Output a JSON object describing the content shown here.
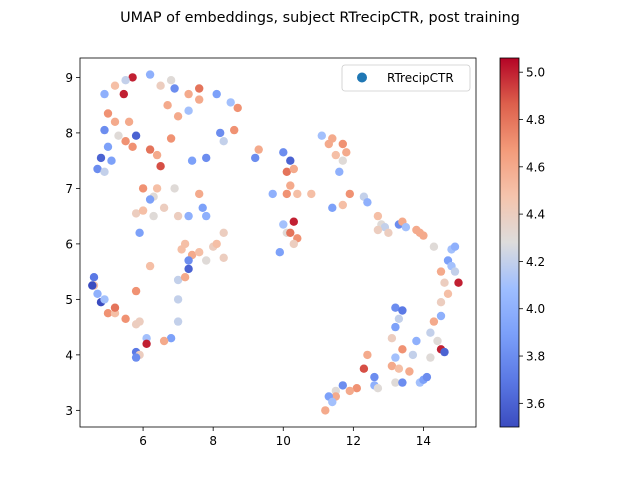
{
  "chart_data": {
    "type": "scatter",
    "title": "UMAP of embeddings, subject RTrecipCTR, post training",
    "xlabel": "",
    "ylabel": "",
    "xlim": [
      4.2,
      15.5
    ],
    "ylim": [
      2.7,
      9.35
    ],
    "xticks": [
      "6",
      "8",
      "10",
      "12",
      "14"
    ],
    "xtick_values": [
      6,
      8,
      10,
      12,
      14
    ],
    "yticks": [
      "3",
      "4",
      "5",
      "6",
      "7",
      "8",
      "9"
    ],
    "ytick_values": [
      3,
      4,
      5,
      6,
      7,
      8,
      9
    ],
    "legend": {
      "label": "RTrecipCTR",
      "placement": "top-right",
      "marker_color": "#1f77b4"
    },
    "colorbar": {
      "cmap": "coolwarm",
      "min": 3.5,
      "max": 5.06,
      "ticks": [
        "3.6",
        "3.8",
        "4.0",
        "4.2",
        "4.4",
        "4.6",
        "4.8",
        "5.0"
      ],
      "tick_values": [
        3.6,
        3.8,
        4.0,
        4.2,
        4.4,
        4.6,
        4.8,
        5.0
      ]
    },
    "grid": false,
    "points": [
      [
        5.7,
        9.0,
        5.0
      ],
      [
        5.5,
        8.95,
        4.2
      ],
      [
        6.2,
        9.05,
        4.0
      ],
      [
        6.5,
        8.85,
        4.4
      ],
      [
        6.8,
        8.95,
        4.3
      ],
      [
        6.9,
        8.8,
        3.8
      ],
      [
        7.3,
        8.7,
        4.6
      ],
      [
        7.6,
        8.8,
        4.8
      ],
      [
        8.1,
        8.7,
        3.9
      ],
      [
        8.5,
        8.55,
        4.1
      ],
      [
        8.7,
        8.45,
        4.7
      ],
      [
        5.2,
        8.85,
        4.5
      ],
      [
        5.45,
        8.7,
        5.0
      ],
      [
        4.9,
        8.7,
        4.0
      ],
      [
        5.0,
        8.35,
        4.7
      ],
      [
        5.2,
        8.2,
        4.6
      ],
      [
        4.9,
        8.05,
        3.8
      ],
      [
        5.3,
        7.95,
        4.3
      ],
      [
        5.5,
        7.85,
        4.7
      ],
      [
        5.0,
        7.75,
        3.9
      ],
      [
        4.8,
        7.55,
        3.6
      ],
      [
        5.1,
        7.5,
        3.9
      ],
      [
        4.7,
        7.35,
        3.8
      ],
      [
        4.9,
        7.3,
        4.2
      ],
      [
        5.8,
        7.95,
        3.6
      ],
      [
        6.2,
        7.7,
        4.8
      ],
      [
        6.4,
        7.6,
        4.6
      ],
      [
        6.5,
        7.4,
        4.9
      ],
      [
        6.8,
        7.9,
        4.7
      ],
      [
        7.0,
        8.3,
        4.6
      ],
      [
        7.3,
        8.4,
        4.1
      ],
      [
        7.6,
        8.6,
        4.6
      ],
      [
        7.8,
        7.55,
        3.8
      ],
      [
        8.2,
        8.0,
        3.8
      ],
      [
        8.6,
        8.05,
        4.7
      ],
      [
        8.3,
        7.85,
        4.2
      ],
      [
        6.0,
        7.0,
        4.7
      ],
      [
        6.3,
        6.85,
        4.3
      ],
      [
        6.4,
        7.0,
        4.5
      ],
      [
        6.6,
        6.65,
        4.4
      ],
      [
        7.0,
        6.5,
        4.4
      ],
      [
        7.6,
        6.9,
        4.6
      ],
      [
        7.7,
        6.65,
        3.9
      ],
      [
        7.8,
        6.5,
        4.0
      ],
      [
        7.3,
        6.5,
        4.0
      ],
      [
        5.8,
        6.55,
        4.4
      ],
      [
        6.0,
        6.6,
        4.5
      ],
      [
        6.2,
        6.8,
        3.9
      ],
      [
        6.3,
        6.5,
        4.3
      ],
      [
        5.9,
        6.2,
        3.9
      ],
      [
        7.1,
        5.9,
        4.5
      ],
      [
        7.2,
        6.0,
        4.5
      ],
      [
        7.4,
        5.8,
        4.6
      ],
      [
        7.3,
        5.7,
        3.8
      ],
      [
        7.6,
        5.85,
        4.5
      ],
      [
        7.8,
        5.7,
        4.3
      ],
      [
        8.0,
        5.95,
        4.4
      ],
      [
        8.3,
        5.75,
        4.4
      ],
      [
        8.3,
        6.2,
        4.4
      ],
      [
        8.1,
        6.0,
        4.5
      ],
      [
        7.0,
        5.35,
        4.2
      ],
      [
        7.2,
        5.4,
        4.6
      ],
      [
        7.3,
        5.55,
        3.6
      ],
      [
        6.2,
        5.6,
        4.5
      ],
      [
        5.8,
        5.15,
        4.7
      ],
      [
        7.0,
        5.0,
        4.2
      ],
      [
        7.0,
        4.6,
        4.2
      ],
      [
        6.8,
        4.3,
        3.9
      ],
      [
        6.6,
        4.25,
        4.6
      ],
      [
        6.1,
        4.3,
        4.1
      ],
      [
        6.1,
        4.2,
        5.0
      ],
      [
        5.8,
        4.05,
        3.7
      ],
      [
        5.9,
        4.0,
        4.4
      ],
      [
        5.8,
        3.95,
        3.8
      ],
      [
        4.6,
        5.4,
        3.7
      ],
      [
        4.6,
        5.25,
        4.5
      ],
      [
        4.7,
        5.1,
        4.0
      ],
      [
        4.8,
        4.95,
        3.5
      ],
      [
        4.9,
        5.0,
        4.1
      ],
      [
        5.0,
        4.75,
        4.7
      ],
      [
        5.2,
        4.75,
        4.5
      ],
      [
        5.2,
        4.85,
        4.8
      ],
      [
        5.5,
        4.65,
        4.7
      ],
      [
        5.8,
        4.55,
        4.4
      ],
      [
        5.9,
        4.6,
        4.4
      ],
      [
        4.55,
        5.25,
        3.5
      ],
      [
        5.6,
        8.2,
        4.6
      ],
      [
        5.7,
        7.75,
        4.7
      ],
      [
        6.7,
        8.5,
        4.6
      ],
      [
        6.9,
        7.0,
        4.3
      ],
      [
        7.4,
        7.5,
        3.9
      ],
      [
        9.3,
        7.7,
        4.6
      ],
      [
        9.2,
        7.55,
        3.8
      ],
      [
        9.7,
        6.9,
        4.0
      ],
      [
        10.0,
        7.65,
        3.8
      ],
      [
        10.2,
        7.5,
        3.6
      ],
      [
        10.1,
        7.3,
        4.8
      ],
      [
        10.2,
        7.05,
        4.6
      ],
      [
        10.1,
        6.9,
        4.7
      ],
      [
        10.3,
        7.35,
        4.6
      ],
      [
        10.4,
        6.9,
        4.5
      ],
      [
        10.8,
        6.9,
        4.5
      ],
      [
        11.1,
        7.95,
        4.1
      ],
      [
        11.3,
        7.8,
        4.6
      ],
      [
        11.4,
        7.9,
        4.6
      ],
      [
        11.5,
        7.6,
        4.5
      ],
      [
        11.7,
        7.8,
        4.7
      ],
      [
        11.7,
        7.5,
        4.3
      ],
      [
        11.8,
        7.65,
        4.6
      ],
      [
        11.6,
        7.3,
        4.0
      ],
      [
        11.9,
        6.9,
        4.7
      ],
      [
        11.4,
        6.65,
        3.9
      ],
      [
        11.7,
        6.7,
        4.5
      ],
      [
        10.0,
        6.35,
        4.1
      ],
      [
        10.1,
        6.2,
        4.3
      ],
      [
        10.2,
        6.2,
        4.8
      ],
      [
        10.3,
        6.4,
        5.0
      ],
      [
        10.4,
        6.1,
        4.7
      ],
      [
        10.3,
        6.0,
        4.4
      ],
      [
        9.9,
        5.85,
        3.9
      ],
      [
        12.3,
        6.85,
        4.2
      ],
      [
        12.4,
        6.75,
        4.0
      ],
      [
        12.7,
        6.5,
        4.5
      ],
      [
        12.8,
        6.35,
        4.3
      ],
      [
        12.9,
        6.3,
        4.2
      ],
      [
        12.7,
        6.25,
        4.4
      ],
      [
        13.0,
        6.2,
        4.4
      ],
      [
        13.3,
        6.35,
        3.8
      ],
      [
        13.4,
        6.4,
        4.6
      ],
      [
        13.5,
        6.3,
        4.1
      ],
      [
        13.8,
        6.25,
        4.6
      ],
      [
        13.9,
        6.2,
        4.6
      ],
      [
        14.0,
        6.15,
        4.6
      ],
      [
        14.3,
        5.95,
        4.3
      ],
      [
        14.5,
        5.5,
        4.6
      ],
      [
        14.8,
        5.9,
        4.1
      ],
      [
        14.9,
        5.95,
        4.0
      ],
      [
        14.7,
        5.7,
        3.9
      ],
      [
        14.8,
        5.6,
        4.1
      ],
      [
        14.9,
        5.5,
        4.2
      ],
      [
        15.0,
        5.3,
        5.0
      ],
      [
        14.6,
        5.3,
        4.4
      ],
      [
        14.7,
        5.1,
        4.5
      ],
      [
        14.5,
        4.95,
        4.4
      ],
      [
        14.5,
        4.7,
        4.0
      ],
      [
        14.3,
        4.6,
        4.6
      ],
      [
        14.2,
        4.4,
        4.2
      ],
      [
        14.4,
        4.25,
        4.3
      ],
      [
        14.5,
        4.1,
        5.0
      ],
      [
        14.6,
        4.05,
        3.6
      ],
      [
        14.2,
        3.95,
        4.3
      ],
      [
        13.2,
        4.85,
        3.8
      ],
      [
        13.4,
        4.8,
        3.7
      ],
      [
        13.3,
        4.65,
        4.2
      ],
      [
        13.2,
        4.5,
        3.9
      ],
      [
        13.1,
        4.3,
        4.4
      ],
      [
        13.4,
        4.1,
        4.7
      ],
      [
        13.8,
        4.25,
        4.0
      ],
      [
        13.7,
        4.0,
        4.2
      ],
      [
        13.1,
        3.8,
        4.6
      ],
      [
        13.2,
        3.95,
        4.1
      ],
      [
        13.3,
        3.75,
        4.5
      ],
      [
        13.2,
        3.5,
        4.3
      ],
      [
        13.4,
        3.5,
        3.8
      ],
      [
        13.6,
        3.7,
        4.6
      ],
      [
        13.9,
        3.5,
        4.1
      ],
      [
        14.0,
        3.55,
        3.9
      ],
      [
        14.1,
        3.6,
        3.8
      ],
      [
        12.4,
        4.0,
        4.6
      ],
      [
        12.3,
        3.75,
        4.9
      ],
      [
        12.6,
        3.6,
        3.8
      ],
      [
        12.6,
        3.45,
        4.0
      ],
      [
        12.7,
        3.4,
        4.3
      ],
      [
        12.1,
        3.4,
        4.7
      ],
      [
        11.7,
        3.45,
        3.8
      ],
      [
        11.9,
        3.35,
        4.6
      ],
      [
        11.5,
        3.35,
        4.3
      ],
      [
        11.5,
        3.25,
        4.6
      ],
      [
        11.3,
        3.25,
        3.9
      ],
      [
        11.4,
        3.15,
        4.1
      ],
      [
        11.2,
        3.0,
        4.6
      ]
    ]
  }
}
